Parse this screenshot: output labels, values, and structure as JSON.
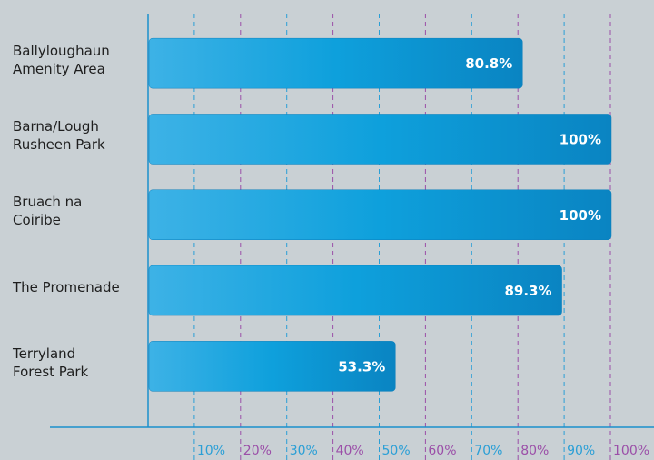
{
  "chart_data": {
    "type": "bar",
    "orientation": "horizontal",
    "categories": [
      "Ballyloughaun\nAmenity Area",
      "Barna/Lough\nRusheen Park",
      "Bruach na\nCoiribe",
      "The Promenade",
      "Terryland\nForest Park"
    ],
    "values": [
      80.8,
      100,
      100,
      89.3,
      53.3
    ],
    "value_labels": [
      "80.8%",
      "100%",
      "100%",
      "89.3%",
      "53.3%"
    ],
    "color": "#0e95d2",
    "xlim": [
      0,
      100
    ],
    "xticks": [
      {
        "value": 10,
        "label": "10%"
      },
      {
        "value": 20,
        "label": "20%"
      },
      {
        "value": 30,
        "label": "30%"
      },
      {
        "value": 40,
        "label": "40%"
      },
      {
        "value": 50,
        "label": "50%"
      },
      {
        "value": 60,
        "label": "60%"
      },
      {
        "value": 70,
        "label": "70%"
      },
      {
        "value": 80,
        "label": "80%"
      },
      {
        "value": 90,
        "label": "90%"
      },
      {
        "value": 100,
        "label": "100%"
      }
    ],
    "grid": true,
    "grid_colors": [
      "#2a9fd6",
      "#9b4fa8"
    ]
  }
}
